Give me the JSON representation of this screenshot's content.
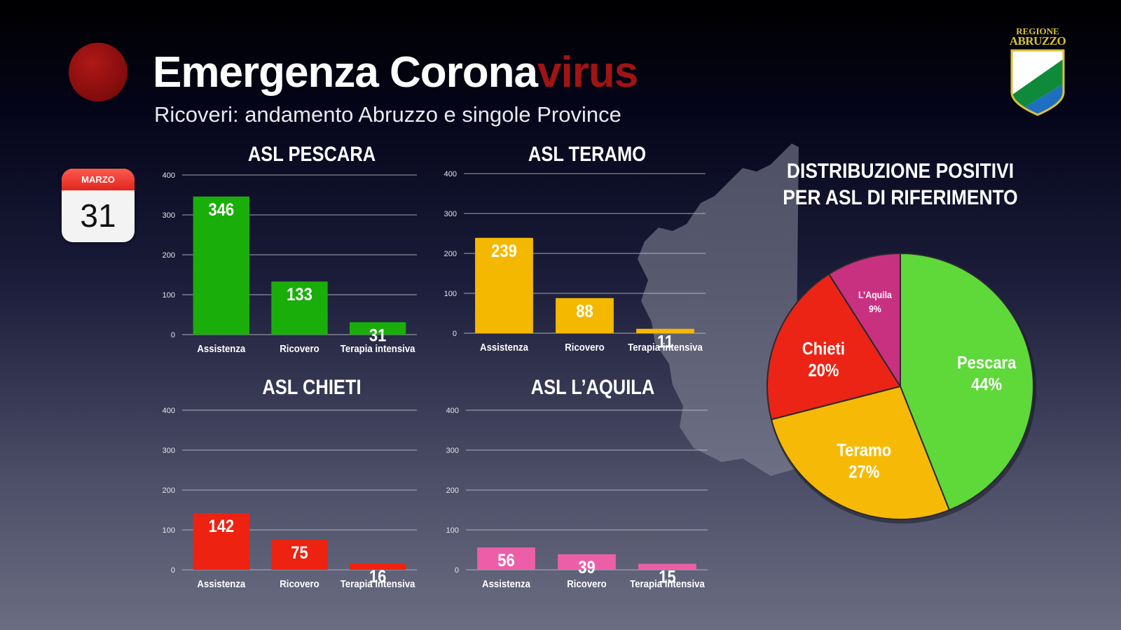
{
  "header": {
    "title_main": "Emergenza Corona",
    "title_accent": "virus",
    "subtitle": "Ricoveri: andamento Abruzzo e singole Province"
  },
  "calendar": {
    "month": "MARZO",
    "day": "31"
  },
  "logo": {
    "line1": "REGIONE",
    "line2": "ABRUZZO"
  },
  "colors": {
    "pescara": "#1aae0a",
    "teramo": "#f5b800",
    "chieti": "#ee2211",
    "laquila": "#ec5fa8",
    "pie_pescara": "#5fd83a",
    "pie_teramo": "#f6ba06",
    "pie_chieti": "#ec2415",
    "pie_laquila": "#c83080"
  },
  "chart_data": [
    {
      "type": "bar",
      "title": "ASL PESCARA",
      "categories": [
        "Assistenza",
        "Ricovero",
        "Terapia intensiva"
      ],
      "values": [
        346,
        133,
        31
      ],
      "ylim": [
        0,
        400
      ],
      "yticks": [
        "0",
        "100",
        "200",
        "300",
        "400"
      ],
      "grid": true
    },
    {
      "type": "bar",
      "title": "ASL TERAMO",
      "categories": [
        "Assistenza",
        "Ricovero",
        "Terapia intensiva"
      ],
      "values": [
        239,
        88,
        11
      ],
      "ylim": [
        0,
        400
      ],
      "yticks": [
        "0",
        "100",
        "200",
        "300",
        "400"
      ],
      "grid": true
    },
    {
      "type": "bar",
      "title": "ASL CHIETI",
      "categories": [
        "Assistenza",
        "Ricovero",
        "Terapia intensiva"
      ],
      "values": [
        142,
        75,
        16
      ],
      "ylim": [
        0,
        400
      ],
      "yticks": [
        "0",
        "100",
        "200",
        "300",
        "400"
      ],
      "grid": true
    },
    {
      "type": "bar",
      "title": "ASL L’AQUILA",
      "categories": [
        "Assistenza",
        "Ricovero",
        "Terapia intensiva"
      ],
      "values": [
        56,
        39,
        15
      ],
      "ylim": [
        0,
        400
      ],
      "yticks": [
        "0",
        "100",
        "200",
        "300",
        "400"
      ],
      "grid": true
    },
    {
      "type": "pie",
      "title_line1": "DISTRIBUZIONE POSITIVI",
      "title_line2": "PER ASL DI RIFERIMENTO",
      "slices": [
        {
          "name": "Pescara",
          "label": "44%",
          "value": 44
        },
        {
          "name": "Teramo",
          "label": "27%",
          "value": 27
        },
        {
          "name": "Chieti",
          "label": "20%",
          "value": 20
        },
        {
          "name": "L’Aquila",
          "label": "9%",
          "value": 9
        }
      ]
    }
  ]
}
